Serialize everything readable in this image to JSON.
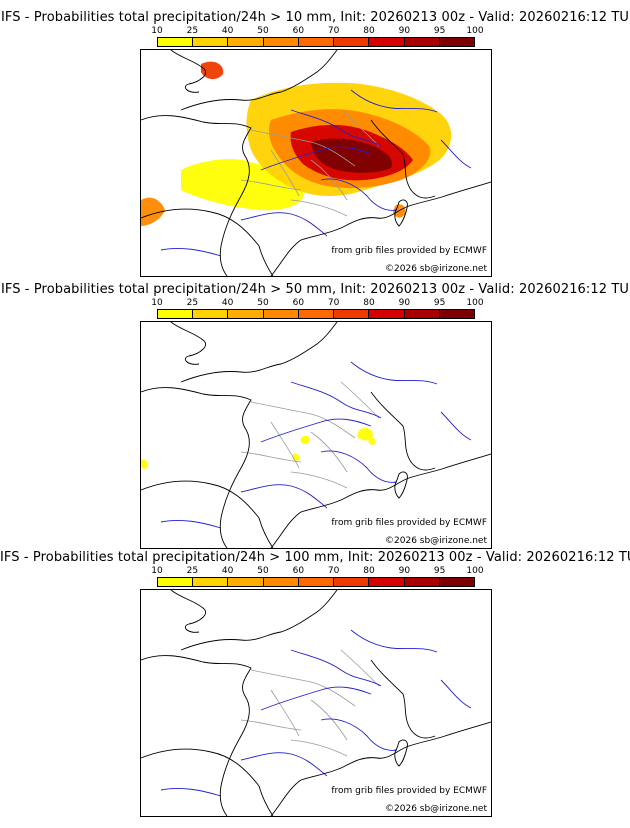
{
  "panels": [
    {
      "title": "IFS - Probabilities total precipitation/24h > 10 mm, Init: 20260213 00z - Valid: 20260216:12 TU",
      "coverage": "high"
    },
    {
      "title": "IFS - Probabilities total precipitation/24h > 50 mm, Init: 20260213 00z - Valid: 20260216:12 TU",
      "coverage": "low"
    },
    {
      "title": "IFS - Probabilities total precipitation/24h > 100 mm, Init: 20260213 00z - Valid: 20260216:12 TU",
      "coverage": "none"
    }
  ],
  "legend": {
    "ticks": [
      "10",
      "25",
      "40",
      "50",
      "60",
      "70",
      "80",
      "90",
      "95",
      "100"
    ],
    "colors": [
      "#ffff00",
      "#ffd200",
      "#ffae00",
      "#ff8800",
      "#ff6a00",
      "#ee3a00",
      "#d40000",
      "#a80000",
      "#7c0000"
    ]
  },
  "credits": {
    "source": "from grib files provided by ECMWF",
    "copyright": "©2026 sb@irizone.net"
  },
  "map_colors": {
    "coast": "#000000",
    "rivers": "#2020d0",
    "borders": "#9a9a9a"
  }
}
